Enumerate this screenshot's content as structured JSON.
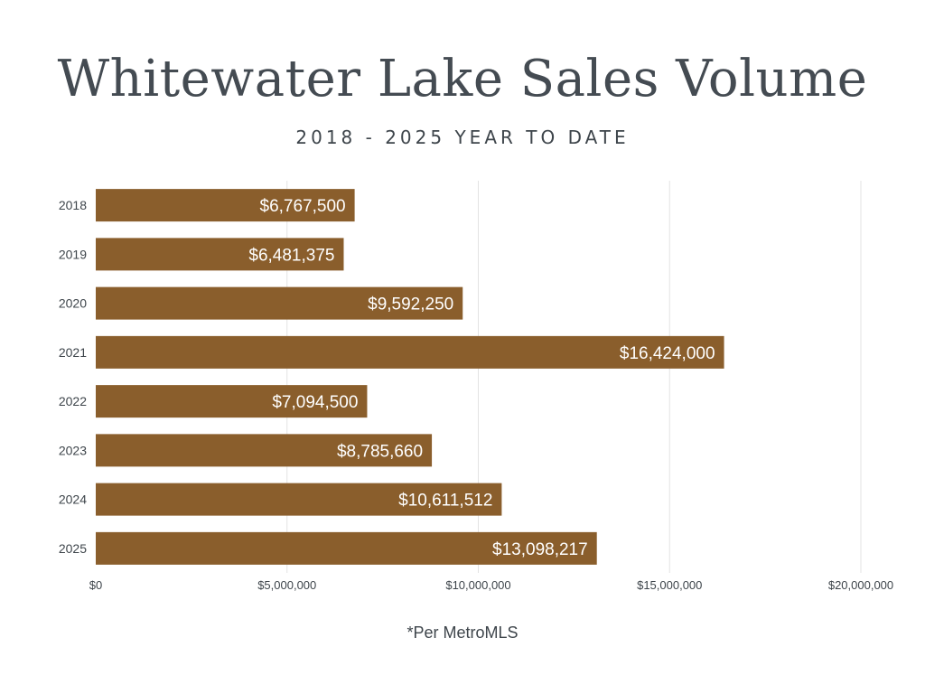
{
  "chart_data": {
    "type": "bar",
    "orientation": "horizontal",
    "title": "Whitewater Lake Sales Volume",
    "subtitle": "2018 - 2025 YEAR TO DATE",
    "categories": [
      "2018",
      "2019",
      "2020",
      "2021",
      "2022",
      "2023",
      "2024",
      "2025"
    ],
    "values": [
      6767500,
      6481375,
      9592250,
      16424000,
      7094500,
      8785660,
      10611512,
      13098217
    ],
    "value_labels": [
      "$6,767,500",
      "$6,481,375",
      "$9,592,250",
      "$16,424,000",
      "$7,094,500",
      "$8,785,660",
      "$10,611,512",
      "$13,098,217"
    ],
    "xlabel": "",
    "ylabel": "",
    "xlim": [
      0,
      20000000
    ],
    "x_ticks": [
      0,
      5000000,
      10000000,
      15000000,
      20000000
    ],
    "x_tick_labels": [
      "$0",
      "$5,000,000",
      "$10,000,000",
      "$15,000,000",
      "$20,000,000"
    ],
    "grid": true,
    "bar_color": "#8a5e2c",
    "note": "*Per MetroMLS"
  }
}
